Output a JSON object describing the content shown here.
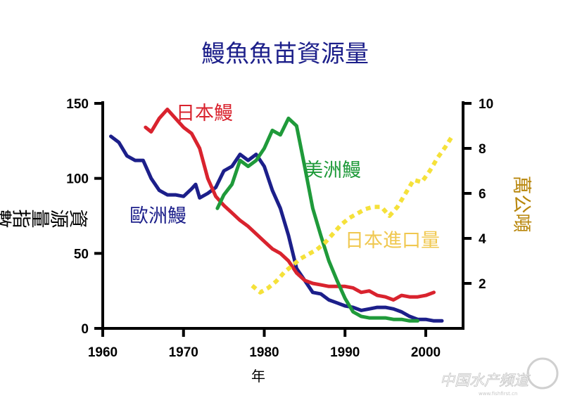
{
  "chart_data": {
    "type": "line",
    "title": "鰻魚魚苗資源量",
    "xlabel": "年",
    "ylabel": "資源量指數",
    "y2label": "萬公噸",
    "xlim": [
      1960,
      2004
    ],
    "ylim": [
      0,
      150
    ],
    "y2lim": [
      0,
      10
    ],
    "xticks": [
      1960,
      1970,
      1980,
      1990,
      2000
    ],
    "yticks": [
      0,
      50,
      100,
      150
    ],
    "y2ticks": [
      2,
      4,
      6,
      8,
      10
    ],
    "grid": false,
    "series": [
      {
        "name": "歐洲鰻",
        "axis": "left",
        "color": "#1c1f8a",
        "style": "solid",
        "x": [
          1961,
          1962,
          1963,
          1964,
          1965,
          1966,
          1967,
          1968,
          1969,
          1970,
          1971,
          1971.5,
          1972,
          1973,
          1974,
          1975,
          1976,
          1977,
          1978,
          1979,
          1980,
          1981,
          1982,
          1983,
          1984,
          1985,
          1986,
          1987,
          1988,
          1989,
          1990,
          1991,
          1992,
          1993,
          1994,
          1995,
          1996,
          1997,
          1998,
          1999,
          2000,
          2001,
          2002
        ],
        "y": [
          128,
          124,
          115,
          112,
          112,
          100,
          92,
          89,
          89,
          88,
          93,
          96,
          87,
          90,
          94,
          105,
          108,
          116,
          112,
          116,
          108,
          92,
          80,
          62,
          40,
          32,
          24,
          23,
          19,
          17,
          15,
          14,
          12,
          13,
          14,
          14,
          13,
          11,
          8,
          6,
          6,
          5,
          5
        ]
      },
      {
        "name": "日本鰻",
        "axis": "left",
        "color": "#d9232e",
        "style": "solid",
        "x": [
          1965.3,
          1966,
          1967,
          1968,
          1969,
          1970,
          1971,
          1972,
          1973,
          1974,
          1975,
          1976,
          1977,
          1978,
          1979,
          1980,
          1981,
          1982,
          1983,
          1984,
          1985,
          1986,
          1987,
          1988,
          1989,
          1990,
          1991,
          1992,
          1993,
          1994,
          1995,
          1996,
          1997,
          1998,
          1999,
          2000,
          2001
        ],
        "y": [
          134,
          131,
          140,
          146,
          140,
          134,
          130,
          120,
          100,
          88,
          82,
          77,
          72,
          68,
          63,
          58,
          53,
          50,
          45,
          37,
          32,
          30,
          29,
          28,
          28,
          28,
          27,
          24,
          25,
          22,
          21,
          19,
          22,
          21,
          21,
          22,
          24
        ]
      },
      {
        "name": "美洲鰻",
        "axis": "left",
        "color": "#1f9a3a",
        "style": "solid",
        "x": [
          1974.2,
          1975,
          1976,
          1977,
          1978,
          1979,
          1980,
          1981,
          1982,
          1983,
          1984,
          1985,
          1986,
          1987,
          1988,
          1989,
          1990,
          1991,
          1992,
          1993,
          1994,
          1995,
          1996,
          1997,
          1998,
          1999
        ],
        "y": [
          80,
          89,
          96,
          112,
          108,
          112,
          120,
          132,
          129,
          140,
          135,
          108,
          80,
          62,
          45,
          32,
          20,
          11,
          8,
          7,
          7,
          7,
          6,
          6,
          5,
          5
        ]
      },
      {
        "name": "日本進口量",
        "axis": "right",
        "color": "#f5e13a",
        "style": "dotted",
        "x": [
          1978.5,
          1979.5,
          1980.5,
          1981.5,
          1982.5,
          1983.5,
          1984.5,
          1985.5,
          1986.5,
          1987.5,
          1988.5,
          1989.5,
          1990.5,
          1991.5,
          1992.5,
          1993.5,
          1994.5,
          1995.5,
          1996.5,
          1997.5,
          1998.5,
          1999.5,
          2000.5,
          2001.5,
          2002.5,
          2003.2
        ],
        "y": [
          1.9,
          1.6,
          1.8,
          2.1,
          2.5,
          2.8,
          3.1,
          3.3,
          3.5,
          3.8,
          4.2,
          4.6,
          4.9,
          5.1,
          5.3,
          5.4,
          5.4,
          5.0,
          5.4,
          6.0,
          6.6,
          6.5,
          7.0,
          7.6,
          8.1,
          8.5
        ]
      }
    ]
  },
  "watermark": {
    "text": "中国水产频道",
    "url_text": "www.fishfirst.cn"
  }
}
